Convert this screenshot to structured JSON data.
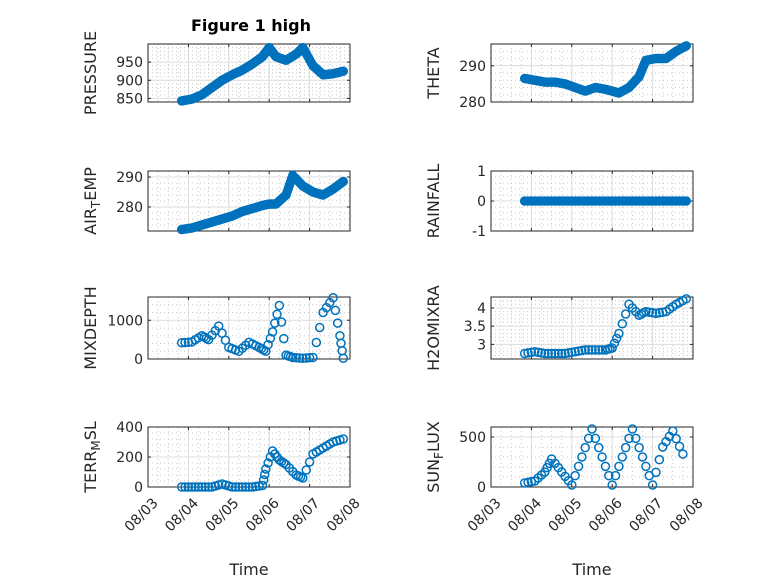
{
  "figure": {
    "title": "Figure 1 high"
  },
  "colors": {
    "marker": "#0072BD",
    "axis": "#262626",
    "grid": "#c8c8c8"
  },
  "chart_data": [
    {
      "type": "scatter",
      "id": "pressure",
      "ylabel": "PRESSURE",
      "ylabel_sub": "",
      "ylim": [
        840,
        1000
      ],
      "yticks": [
        850,
        900,
        950
      ],
      "xlabel": "",
      "xtick_labels": [],
      "filled": true,
      "x": [
        "08/03 20:00",
        "08/04 02:00",
        "08/04 08:00",
        "08/04 14:00",
        "08/04 20:00",
        "08/05 02:00",
        "08/05 08:00",
        "08/05 14:00",
        "08/05 20:00",
        "08/06 00:00",
        "08/06 04:00",
        "08/06 10:00",
        "08/06 16:00",
        "08/06 20:00",
        "08/07 02:00",
        "08/07 08:00",
        "08/07 14:00",
        "08/07 20:00"
      ],
      "y": [
        843,
        848,
        860,
        880,
        900,
        915,
        928,
        945,
        965,
        990,
        965,
        955,
        972,
        990,
        940,
        915,
        918,
        925
      ]
    },
    {
      "type": "scatter",
      "id": "theta",
      "ylabel": "THETA",
      "ylabel_sub": "",
      "ylim": [
        280,
        296
      ],
      "yticks": [
        280,
        290
      ],
      "xlabel": "",
      "xtick_labels": [],
      "filled": true,
      "x": [
        "08/03 20:00",
        "08/04 02:00",
        "08/04 08:00",
        "08/04 14:00",
        "08/04 20:00",
        "08/05 02:00",
        "08/05 08:00",
        "08/05 14:00",
        "08/05 20:00",
        "08/06 00:00",
        "08/06 04:00",
        "08/06 10:00",
        "08/06 16:00",
        "08/06 20:00",
        "08/07 02:00",
        "08/07 08:00",
        "08/07 14:00",
        "08/07 20:00"
      ],
      "y": [
        286.5,
        286,
        285.5,
        285.5,
        285,
        284,
        283,
        284,
        283.5,
        283,
        282.5,
        284,
        287,
        291.5,
        292,
        292,
        294,
        295.5
      ]
    },
    {
      "type": "scatter",
      "id": "air-temp",
      "ylabel": "AIR",
      "ylabel_sub": "T",
      "ylabel_tail": "EMP",
      "ylim": [
        272,
        292
      ],
      "yticks": [
        280,
        290
      ],
      "xlabel": "",
      "xtick_labels": [],
      "filled": true,
      "x": [
        "08/03 20:00",
        "08/04 02:00",
        "08/04 08:00",
        "08/04 14:00",
        "08/04 20:00",
        "08/05 02:00",
        "08/05 08:00",
        "08/05 14:00",
        "08/05 20:00",
        "08/06 00:00",
        "08/06 04:00",
        "08/06 10:00",
        "08/06 14:00",
        "08/06 20:00",
        "08/07 02:00",
        "08/07 08:00",
        "08/07 14:00",
        "08/07 20:00"
      ],
      "y": [
        272.5,
        273,
        274,
        275,
        276,
        277,
        278.5,
        279.5,
        280.5,
        281,
        281,
        284,
        290.5,
        287,
        285,
        284,
        286,
        288.5
      ]
    },
    {
      "type": "scatter",
      "id": "rainfall",
      "ylabel": "RAINFALL",
      "ylabel_sub": "",
      "ylim": [
        -1,
        1
      ],
      "yticks": [
        -1,
        0,
        1
      ],
      "xlabel": "",
      "xtick_labels": [],
      "filled": true,
      "x": [
        "08/03 20:00",
        "08/04 08:00",
        "08/04 20:00",
        "08/05 08:00",
        "08/05 20:00",
        "08/06 08:00",
        "08/06 20:00",
        "08/07 08:00",
        "08/07 20:00"
      ],
      "y": [
        0,
        0,
        0,
        0,
        0,
        0,
        0,
        0,
        0
      ]
    },
    {
      "type": "scatter",
      "id": "mixdepth",
      "ylabel": "MIXDEPTH",
      "ylabel_sub": "",
      "ylim": [
        0,
        1600
      ],
      "yticks": [
        0,
        1000
      ],
      "xlabel": "",
      "xtick_labels": [],
      "filled": false,
      "x": [
        "08/03 20:00",
        "08/04 02:00",
        "08/04 08:00",
        "08/04 12:00",
        "08/04 18:00",
        "08/05 00:00",
        "08/05 06:00",
        "08/05 12:00",
        "08/05 18:00",
        "08/05 22:00",
        "08/06 02:00",
        "08/06 06:00",
        "08/06 10:00",
        "08/06 14:00",
        "08/06 20:00",
        "08/07 02:00",
        "08/07 08:00",
        "08/07 14:00",
        "08/07 18:00",
        "08/07 20:00"
      ],
      "y": [
        420,
        440,
        600,
        500,
        850,
        300,
        200,
        430,
        300,
        200,
        700,
        1380,
        100,
        40,
        20,
        40,
        1200,
        1580,
        600,
        20
      ]
    },
    {
      "type": "scatter",
      "id": "h2omixra",
      "ylabel": "H2OMIXRA",
      "ylabel_sub": "",
      "ylim": [
        2.6,
        4.3
      ],
      "yticks": [
        3,
        3.5,
        4
      ],
      "xlabel": "",
      "xtick_labels": [],
      "filled": false,
      "x": [
        "08/03 20:00",
        "08/04 02:00",
        "08/04 08:00",
        "08/04 14:00",
        "08/04 20:00",
        "08/05 02:00",
        "08/05 08:00",
        "08/05 14:00",
        "08/05 20:00",
        "08/06 00:00",
        "08/06 04:00",
        "08/06 10:00",
        "08/06 16:00",
        "08/06 20:00",
        "08/07 02:00",
        "08/07 08:00",
        "08/07 14:00",
        "08/07 20:00"
      ],
      "y": [
        2.75,
        2.8,
        2.75,
        2.75,
        2.75,
        2.8,
        2.85,
        2.85,
        2.85,
        2.9,
        3.3,
        4.1,
        3.8,
        3.9,
        3.85,
        3.9,
        4.1,
        4.25
      ]
    },
    {
      "type": "scatter",
      "id": "terr-msl",
      "ylabel": "TERR",
      "ylabel_sub": "M",
      "ylabel_tail": "SL",
      "ylim": [
        0,
        400
      ],
      "yticks": [
        0,
        200,
        400
      ],
      "xlabel": "Time",
      "xtick_labels": [
        "08/03",
        "08/04",
        "08/05",
        "08/06",
        "08/07",
        "08/08"
      ],
      "filled": false,
      "x": [
        "08/03 20:00",
        "08/04 02:00",
        "08/04 08:00",
        "08/04 14:00",
        "08/04 20:00",
        "08/05 02:00",
        "08/05 08:00",
        "08/05 14:00",
        "08/05 20:00",
        "08/05 22:00",
        "08/06 02:00",
        "08/06 06:00",
        "08/06 10:00",
        "08/06 16:00",
        "08/06 20:00",
        "08/07 02:00",
        "08/07 08:00",
        "08/07 14:00",
        "08/07 20:00"
      ],
      "y": [
        0,
        0,
        0,
        0,
        20,
        0,
        0,
        0,
        10,
        120,
        240,
        180,
        150,
        80,
        60,
        220,
        260,
        300,
        320
      ]
    },
    {
      "type": "scatter",
      "id": "sun-flux",
      "ylabel": "SUN",
      "ylabel_sub": "F",
      "ylabel_tail": "LUX",
      "ylim": [
        0,
        600
      ],
      "yticks": [
        0,
        500
      ],
      "xlabel": "Time",
      "xtick_labels": [
        "08/03",
        "08/04",
        "08/05",
        "08/06",
        "08/07",
        "08/08"
      ],
      "filled": false,
      "x": [
        "08/03 20:00",
        "08/04 02:00",
        "08/04 08:00",
        "08/04 12:00",
        "08/04 18:00",
        "08/05 00:00",
        "08/05 06:00",
        "08/05 12:00",
        "08/05 18:00",
        "08/06 00:00",
        "08/06 06:00",
        "08/06 12:00",
        "08/06 18:00",
        "08/07 00:00",
        "08/07 06:00",
        "08/07 12:00",
        "08/07 18:00"
      ],
      "y": [
        40,
        60,
        150,
        280,
        150,
        20,
        300,
        580,
        300,
        20,
        300,
        580,
        300,
        20,
        400,
        560,
        330
      ]
    }
  ]
}
